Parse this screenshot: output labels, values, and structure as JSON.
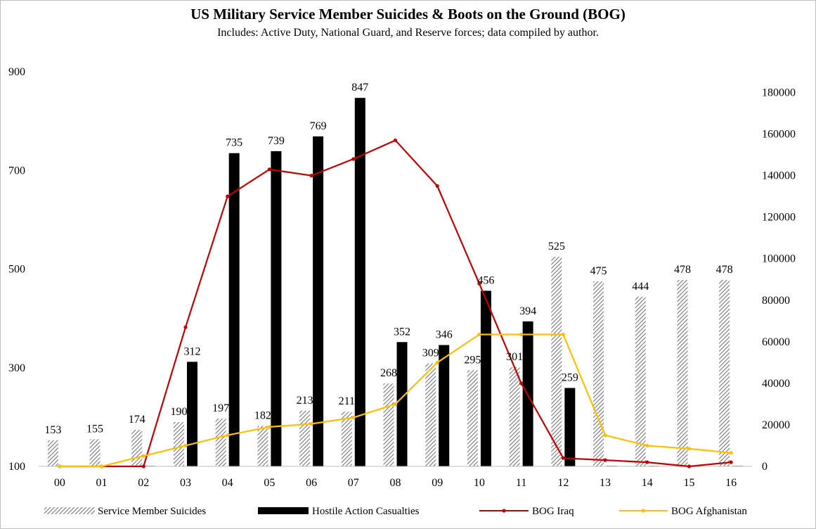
{
  "chart_data": {
    "type": "bar",
    "title": "US Military Service Member Suicides & Boots on the Ground (BOG)",
    "subtitle": "Includes: Active Duty, National Guard, and Reserve forces; data compiled by author.",
    "categories": [
      "00",
      "01",
      "02",
      "03",
      "04",
      "05",
      "06",
      "07",
      "08",
      "09",
      "10",
      "11",
      "12",
      "13",
      "14",
      "15",
      "16"
    ],
    "y_left": {
      "ylim": [
        100,
        900
      ],
      "ticks": [
        "100",
        "300",
        "500",
        "700",
        "900"
      ]
    },
    "y_right": {
      "ylim": [
        0,
        190000
      ],
      "ticks": [
        "0",
        "20000",
        "40000",
        "60000",
        "80000",
        "100000",
        "120000",
        "140000",
        "160000",
        "180000"
      ]
    },
    "grid": false,
    "legend_position": "bottom",
    "series": [
      {
        "name": "Service Member Suicides",
        "kind": "bar",
        "pattern": "diagonal-hatch",
        "color": "#7f7f7f",
        "axis": "left",
        "values": [
          153,
          155,
          174,
          190,
          197,
          182,
          213,
          211,
          268,
          309,
          295,
          301,
          525,
          475,
          444,
          478,
          478
        ],
        "labels": [
          "153",
          "155",
          "174",
          "190",
          "197",
          "182",
          "213",
          "211",
          "268",
          "309",
          "295",
          "301",
          "525",
          "475",
          "444",
          "478",
          "478"
        ]
      },
      {
        "name": "Hostile Action Casualties",
        "kind": "bar",
        "color": "#000000",
        "axis": "left",
        "values": [
          101,
          101,
          101,
          312,
          735,
          739,
          769,
          847,
          352,
          346,
          456,
          394,
          259,
          101,
          101,
          101,
          101
        ],
        "labels": [
          "",
          "",
          "",
          "312",
          "735",
          "739",
          "769",
          "847",
          "352",
          "346",
          "456",
          "394",
          "259",
          "",
          "",
          "",
          ""
        ]
      },
      {
        "name": "BOG Iraq",
        "kind": "line",
        "color": "#c00000",
        "axis": "right",
        "values": [
          0,
          0,
          0,
          67000,
          130000,
          143000,
          140000,
          148000,
          157000,
          135000,
          88000,
          40000,
          4000,
          3000,
          2000,
          0,
          2000
        ]
      },
      {
        "name": "BOG Afghanistan",
        "kind": "line",
        "color": "#ffc000",
        "axis": "right",
        "values": [
          0,
          0,
          5000,
          10000,
          15000,
          19000,
          20500,
          23500,
          30000,
          50000,
          63500,
          63500,
          63500,
          15000,
          10000,
          8500,
          6500
        ]
      }
    ]
  }
}
